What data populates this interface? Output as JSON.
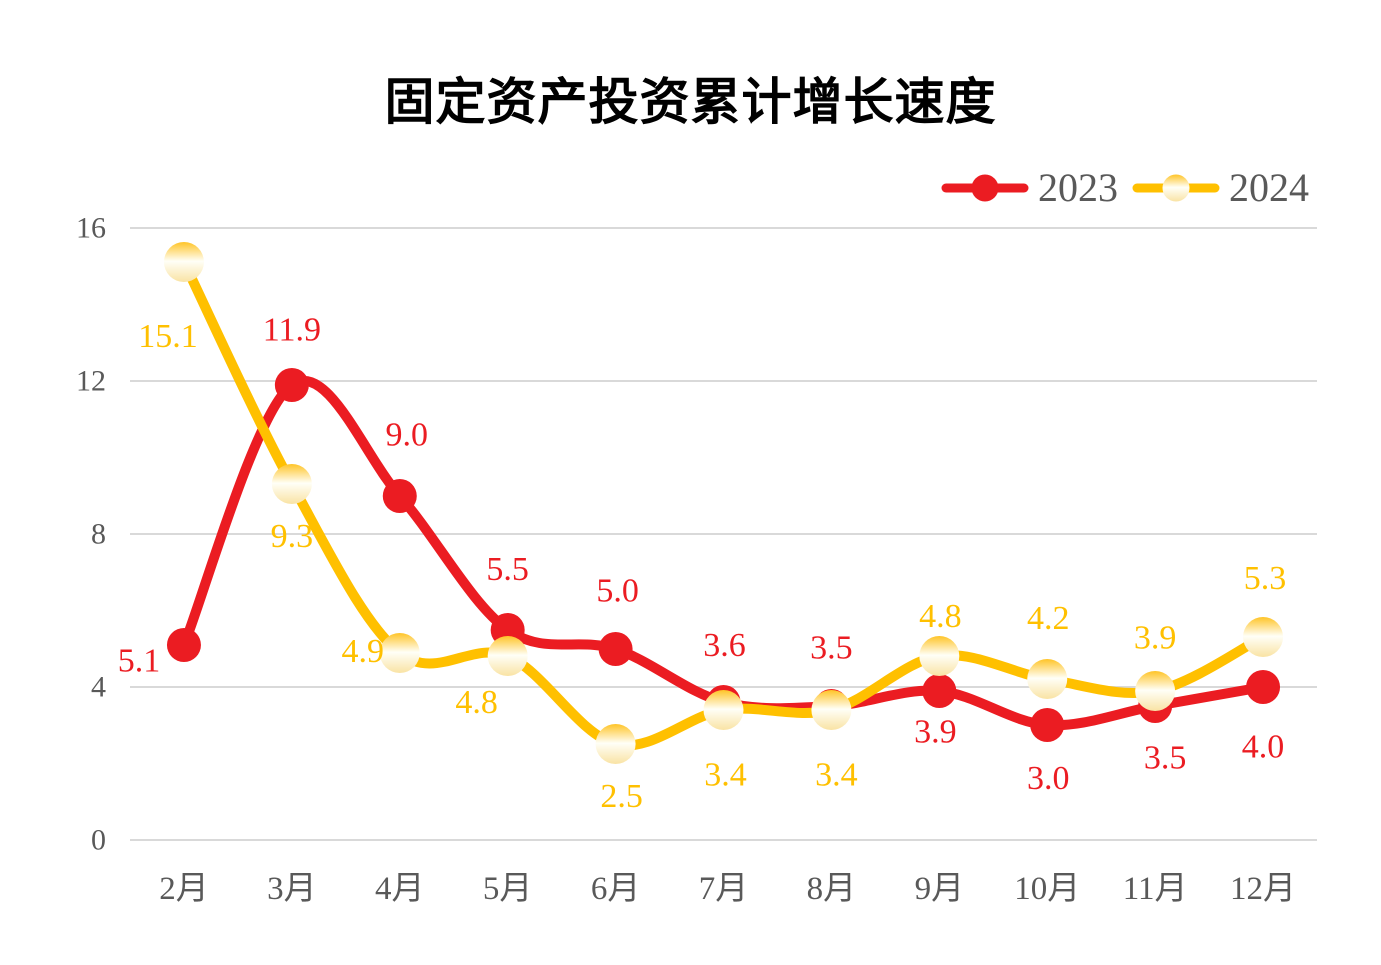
{
  "title": "固定资产投资累计增长速度",
  "colors": {
    "series_2023": "#EB1C22",
    "series_2024": "#FFC000",
    "gold_marker_gradient": [
      "#FFC427",
      "#FFFFF7",
      "#F9E3A4"
    ],
    "grid_line": "#D9D9D9",
    "axis_text": "#595959",
    "title_text": "#000000",
    "background": "#FFFFFF"
  },
  "legend": {
    "items": [
      "2023",
      "2024"
    ]
  },
  "chart_data": {
    "type": "line",
    "title": "固定资产投资累计增长速度",
    "categories": [
      "2月",
      "3月",
      "4月",
      "5月",
      "6月",
      "7月",
      "8月",
      "9月",
      "10月",
      "11月",
      "12月"
    ],
    "series": [
      {
        "name": "2023",
        "color": "#EB1C22",
        "marker": "solid",
        "values": [
          5.1,
          11.9,
          9.0,
          5.5,
          5.0,
          3.6,
          3.5,
          3.9,
          3.0,
          3.5,
          4.0
        ],
        "labels": [
          "5.1",
          "11.9",
          "9.0",
          "5.5",
          "5.0",
          "3.6",
          "3.5",
          "3.9",
          "3.0",
          "3.5",
          "4.0"
        ],
        "label_offsets": [
          [
            -45,
            16
          ],
          [
            0,
            -55
          ],
          [
            7,
            -61
          ],
          [
            0,
            -60
          ],
          [
            2,
            -58
          ],
          [
            1,
            -57
          ],
          [
            0,
            -58
          ],
          [
            -4,
            41
          ],
          [
            1,
            53
          ],
          [
            10,
            52
          ],
          [
            0,
            60
          ]
        ]
      },
      {
        "name": "2024",
        "color": "#FFC000",
        "marker": "gradient",
        "values": [
          15.1,
          9.3,
          4.9,
          4.8,
          2.5,
          3.4,
          3.4,
          4.8,
          4.2,
          3.9,
          5.3
        ],
        "labels": [
          "15.1",
          "9.3",
          "4.9",
          "4.8",
          "2.5",
          "3.4",
          "3.4",
          "4.8",
          "4.2",
          "3.9",
          "5.3"
        ],
        "label_offsets": [
          [
            -16,
            74
          ],
          [
            0,
            52
          ],
          [
            -37,
            -1
          ],
          [
            -31,
            46
          ],
          [
            6,
            52
          ],
          [
            2,
            65
          ],
          [
            5,
            65
          ],
          [
            1,
            -40
          ],
          [
            1,
            -61
          ],
          [
            0,
            -53
          ],
          [
            2,
            -59
          ]
        ]
      }
    ],
    "xlabel": "",
    "ylabel": "",
    "ylim": [
      0,
      16
    ],
    "yticks": [
      0,
      4,
      8,
      12,
      16
    ],
    "grid": true,
    "line_style": "smooth",
    "legend_position": "top-right"
  }
}
